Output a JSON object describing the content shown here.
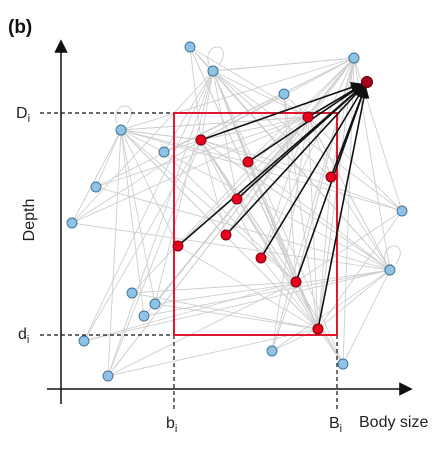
{
  "panel_label": "(b)",
  "axes": {
    "y_label": "Depth",
    "x_label": "Body size",
    "y_ticks": [
      {
        "main": "D",
        "sub": "i"
      },
      {
        "main": "d",
        "sub": "i"
      }
    ],
    "x_ticks": [
      {
        "main": "b",
        "sub": "i"
      },
      {
        "main": "B",
        "sub": "i"
      }
    ]
  },
  "colors": {
    "species_node": "#8ec3e6",
    "species_node_edge": "#3f6f93",
    "prey_node": "#e8001d",
    "prey_node_edge": "#7a0010",
    "predator_node": "#a8001c",
    "predator_link": "#111111",
    "background_link": "#cfcfcf",
    "niche_box": "#e0182f",
    "axis": "#111111"
  }
}
